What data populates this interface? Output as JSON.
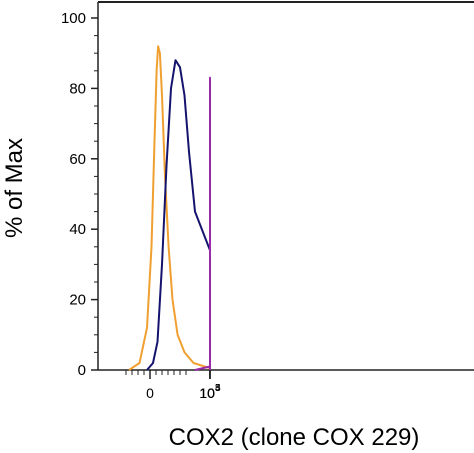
{
  "chart_data": {
    "type": "line",
    "title": "",
    "xlabel": "COX2 (clone COX 229)",
    "ylabel": "% of Max",
    "xscale": "biexponential",
    "ylim": [
      0,
      100
    ],
    "yticks": [
      {
        "value": 0,
        "label": "0"
      },
      {
        "value": 20,
        "label": "20"
      },
      {
        "value": 40,
        "label": "40"
      },
      {
        "value": 60,
        "label": "60"
      },
      {
        "value": 80,
        "label": "80"
      },
      {
        "value": 100,
        "label": "100"
      }
    ],
    "xticks": [
      {
        "value": 0,
        "base": "0",
        "exp": ""
      },
      {
        "value": 1000,
        "base": "10",
        "exp": "3"
      },
      {
        "value": 10000,
        "base": "10",
        "exp": "4"
      },
      {
        "value": 100000,
        "base": "10",
        "exp": "5"
      }
    ],
    "grid": false,
    "legend": "none",
    "series": [
      {
        "color": "#f0a030",
        "points": [
          [
            -70,
            0
          ],
          [
            -35,
            2
          ],
          [
            -10,
            12
          ],
          [
            5,
            35
          ],
          [
            15,
            65
          ],
          [
            22,
            85
          ],
          [
            27,
            92
          ],
          [
            33,
            90
          ],
          [
            40,
            78
          ],
          [
            50,
            55
          ],
          [
            62,
            35
          ],
          [
            75,
            20
          ],
          [
            92,
            10
          ],
          [
            115,
            5
          ],
          [
            145,
            2
          ],
          [
            190,
            0.5
          ],
          [
            260,
            0
          ]
        ]
      },
      {
        "color": "#14146e",
        "points": [
          [
            -10,
            0
          ],
          [
            10,
            2
          ],
          [
            25,
            8
          ],
          [
            40,
            30
          ],
          [
            55,
            58
          ],
          [
            70,
            80
          ],
          [
            85,
            88
          ],
          [
            100,
            86
          ],
          [
            115,
            78
          ],
          [
            130,
            62
          ],
          [
            150,
            45
          ],
          [
            180,
            34
          ],
          [
            220,
            26
          ],
          [
            270,
            21
          ],
          [
            330,
            17
          ],
          [
            400,
            14
          ],
          [
            470,
            11
          ],
          [
            540,
            13
          ],
          [
            620,
            9
          ],
          [
            700,
            11
          ],
          [
            780,
            7
          ],
          [
            880,
            6
          ],
          [
            1000,
            5
          ],
          [
            1300,
            4
          ],
          [
            1700,
            3
          ],
          [
            2300,
            2
          ],
          [
            3200,
            1
          ],
          [
            4500,
            0.4
          ],
          [
            6000,
            0
          ]
        ]
      },
      {
        "color": "#9a2aa8",
        "points": [
          [
            150,
            0
          ],
          [
            250,
            1
          ],
          [
            350,
            2
          ],
          [
            450,
            3
          ],
          [
            550,
            5
          ],
          [
            700,
            6
          ],
          [
            900,
            8
          ],
          [
            1100,
            9
          ],
          [
            1300,
            8
          ],
          [
            1600,
            8
          ],
          [
            1900,
            11
          ],
          [
            2300,
            16
          ],
          [
            2800,
            22
          ],
          [
            3300,
            28
          ],
          [
            4000,
            35
          ],
          [
            4800,
            42
          ],
          [
            5500,
            48
          ],
          [
            6200,
            56
          ],
          [
            7000,
            64
          ],
          [
            7800,
            62
          ],
          [
            8600,
            66
          ],
          [
            9500,
            68
          ],
          [
            10500,
            64
          ],
          [
            11500,
            69
          ],
          [
            13000,
            74
          ],
          [
            14500,
            77
          ],
          [
            16000,
            72
          ],
          [
            17500,
            81
          ],
          [
            19000,
            80
          ],
          [
            20500,
            83
          ],
          [
            22000,
            78
          ],
          [
            24000,
            72
          ],
          [
            27000,
            62
          ],
          [
            30000,
            52
          ],
          [
            34000,
            40
          ],
          [
            39000,
            28
          ],
          [
            45000,
            17
          ],
          [
            52000,
            7
          ],
          [
            60000,
            2
          ],
          [
            70000,
            0
          ]
        ]
      }
    ]
  }
}
